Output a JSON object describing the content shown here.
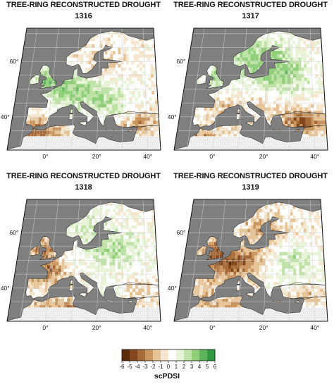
{
  "panels": [
    {
      "title": "TREE-RING RECONSTRUCTED DROUGHT",
      "year": "1316",
      "pattern": "wet_north_west"
    },
    {
      "title": "TREE-RING RECONSTRUCTED DROUGHT",
      "year": "1317",
      "pattern": "wet_north_dry_southeast"
    },
    {
      "title": "TREE-RING RECONSTRUCTED DROUGHT",
      "year": "1318",
      "pattern": "dry_west_wet_east"
    },
    {
      "title": "TREE-RING RECONSTRUCTED DROUGHT",
      "year": "1319",
      "pattern": "dry_central"
    }
  ],
  "axes": {
    "lat_labels": [
      "60°",
      "40°"
    ],
    "lon_labels": [
      "0°",
      "20°",
      "40°"
    ]
  },
  "legend": {
    "title": "scPDSI",
    "ticks": [
      "-6",
      "-5",
      "-4",
      "-3",
      "-2",
      "-1",
      "0",
      "1",
      "2",
      "3",
      "4",
      "5",
      "6"
    ],
    "colors": [
      "#5a2a0c",
      "#84461c",
      "#a66a38",
      "#c9955e",
      "#e6c498",
      "#f5e6cd",
      "#ffffff",
      "#e8f4d8",
      "#bfe3a6",
      "#8fcf7a",
      "#5db45a",
      "#2f9a3e"
    ]
  },
  "colors": {
    "ocean": "#7f7f7f",
    "land_neutral": "#ffffff",
    "no_data": "#f2f2f2",
    "grid": "#d0d0d0"
  }
}
